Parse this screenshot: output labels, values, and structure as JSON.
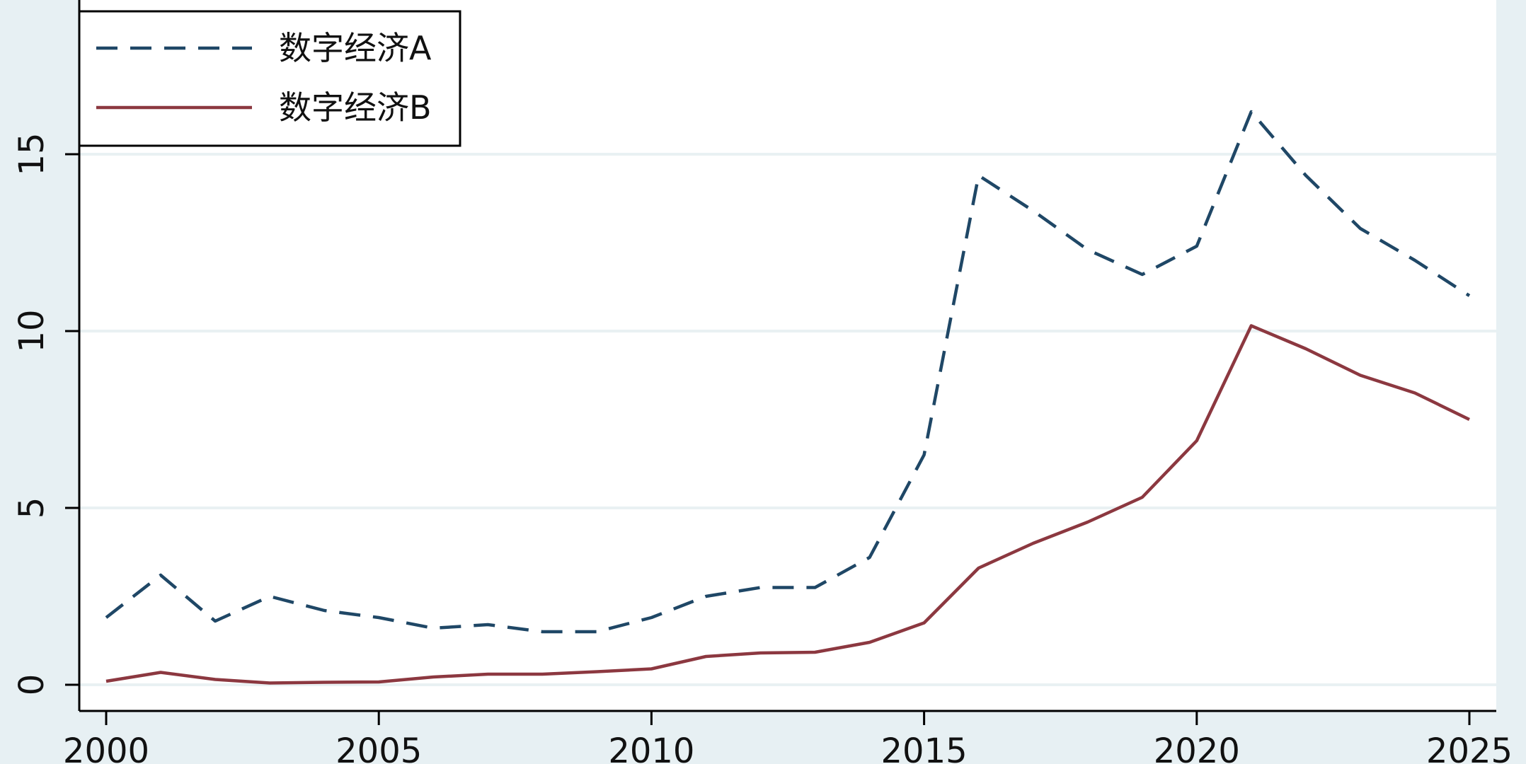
{
  "chart_data": {
    "type": "line",
    "x": [
      2000,
      2001,
      2002,
      2003,
      2004,
      2005,
      2006,
      2007,
      2008,
      2009,
      2010,
      2011,
      2012,
      2013,
      2014,
      2015,
      2016,
      2017,
      2018,
      2019,
      2020,
      2021,
      2022,
      2023,
      2024,
      2025
    ],
    "series": [
      {
        "name": "数字经济A",
        "style": "dashed",
        "color": "#1f4766",
        "values": [
          1.9,
          3.1,
          1.8,
          2.5,
          2.1,
          1.9,
          1.6,
          1.7,
          1.5,
          1.5,
          1.9,
          2.5,
          2.75,
          2.75,
          3.6,
          6.5,
          14.4,
          13.4,
          12.3,
          11.6,
          12.4,
          16.2,
          14.4,
          12.9,
          12.0,
          11.0
        ]
      },
      {
        "name": "数字经济B",
        "style": "solid",
        "color": "#8c3840",
        "values": [
          0.1,
          0.35,
          0.15,
          0.05,
          0.07,
          0.08,
          0.22,
          0.3,
          0.3,
          0.37,
          0.45,
          0.8,
          0.9,
          0.92,
          1.2,
          1.75,
          3.3,
          4.0,
          4.6,
          5.3,
          6.9,
          10.15,
          9.5,
          8.75,
          8.25,
          7.5
        ]
      }
    ],
    "x_ticks": [
      2000,
      2005,
      2010,
      2015,
      2020,
      2025
    ],
    "y_ticks": [
      0,
      5,
      10,
      15
    ],
    "xlim": [
      2000,
      2025
    ],
    "ylim": [
      0,
      20
    ],
    "grid": "horizontal",
    "legend_position": "top-left",
    "title": "",
    "xlabel": "",
    "ylabel": ""
  }
}
